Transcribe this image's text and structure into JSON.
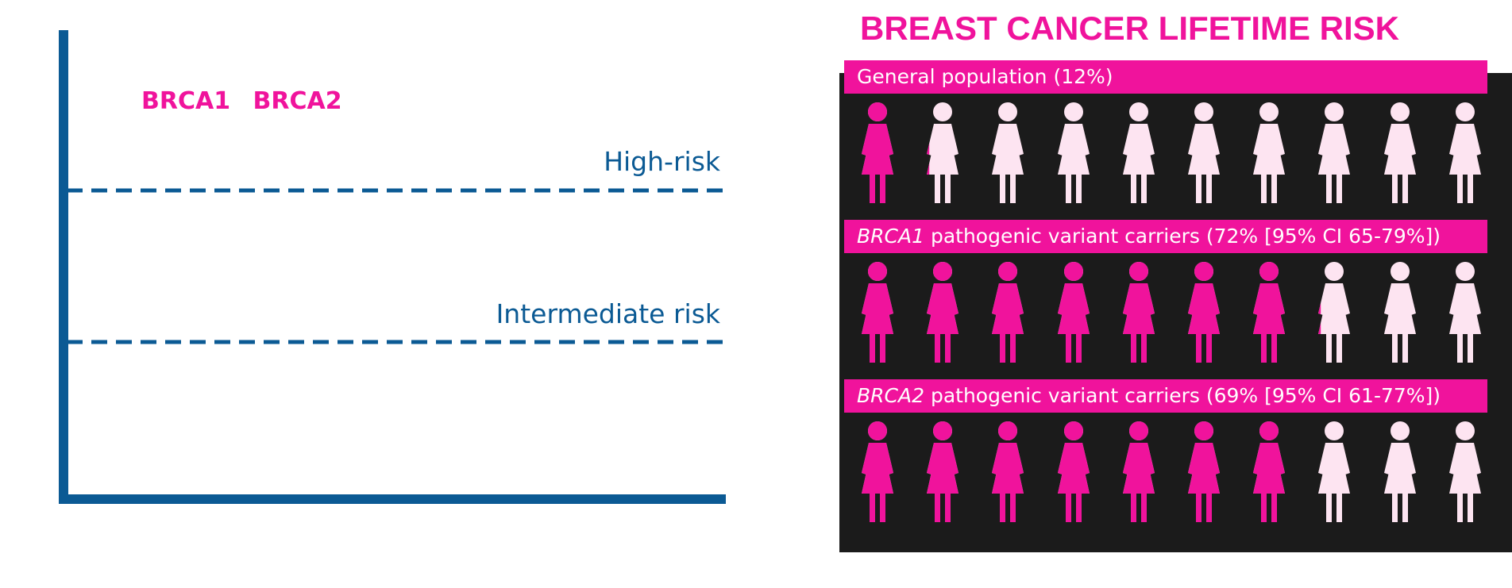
{
  "left_diagram": {
    "genes": [
      "BRCA1",
      "BRCA2"
    ],
    "thresholds": [
      {
        "label": "High-risk"
      },
      {
        "label": "Intermediate risk"
      }
    ],
    "line_color": "#0b5a94",
    "gene_color": "#f0139c"
  },
  "right_panel": {
    "title": "BREAST CANCER LIFETIME RISK",
    "colors": {
      "affected": "#f0139c",
      "unaffected": "#fde4f1",
      "background": "#1b1b1b"
    },
    "rows": [
      {
        "gene_italic": "",
        "label": "General population (12%)",
        "risk_percent": 12
      },
      {
        "gene_italic": "BRCA1",
        "label": " pathogenic variant carriers (72% [95% CI 65-79%])",
        "risk_percent": 72
      },
      {
        "gene_italic": "BRCA2",
        "label": " pathogenic variant carriers (69% [95% CI 61-77%])",
        "risk_percent": 69
      }
    ]
  }
}
